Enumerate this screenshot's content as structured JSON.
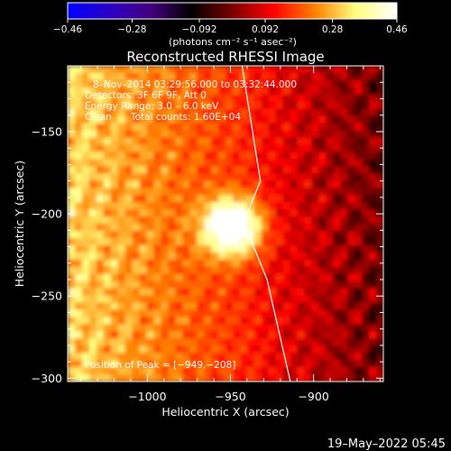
{
  "chart_data": {
    "type": "heatmap",
    "title": "Reconstructed RHESSI Image",
    "xlabel": "Heliocentric X (arcsec)",
    "ylabel": "Heliocentric Y (arcsec)",
    "xlim": [
      -1048,
      -858
    ],
    "ylim": [
      -302,
      -110
    ],
    "x_ticks": [
      -1000,
      -950,
      -900
    ],
    "x_tick_labels": [
      "−1000",
      "−950",
      "−900"
    ],
    "y_ticks": [
      -150,
      -200,
      -250,
      -300
    ],
    "y_tick_labels": [
      "−150",
      "−200",
      "−250",
      "−300"
    ],
    "colorbar": {
      "min": -0.46,
      "max": 0.46,
      "ticks": [
        -0.46,
        -0.28,
        -0.092,
        0.092,
        0.28,
        0.46
      ],
      "tick_labels": [
        "−0.46",
        "−0.28",
        "−0.092",
        "0.092",
        "0.28",
        "0.46"
      ],
      "unit_label": "(photons cm⁻² s⁻¹ asec⁻²)",
      "stops": [
        "#0000ff",
        "#2a00c8",
        "#440080",
        "#000000",
        "#7a0000",
        "#ff0000",
        "#ff8000",
        "#ffff80",
        "#ffffff"
      ]
    },
    "annotations": {
      "time_range": "8–Nov–2014 03:29:56.000 to 03:32:44.000",
      "detectors": "Detectors: 3F 6F 9F, Att 0",
      "energy": "Energy Range: 3.0 – 6.0 keV",
      "clean": "Clean",
      "total_counts": "Total counts: 1.60E+04",
      "peak": "Position of Peak = [−949,−208]"
    },
    "peak": [
      -949,
      -208
    ],
    "limb": [
      [
        -943,
        -110
      ],
      [
        -932,
        -180
      ],
      [
        -942,
        -205
      ],
      [
        -928,
        -240
      ],
      [
        -914,
        -302
      ]
    ],
    "grid": false
  },
  "footer": {
    "timestamp": "19–May–2022 05:45"
  }
}
